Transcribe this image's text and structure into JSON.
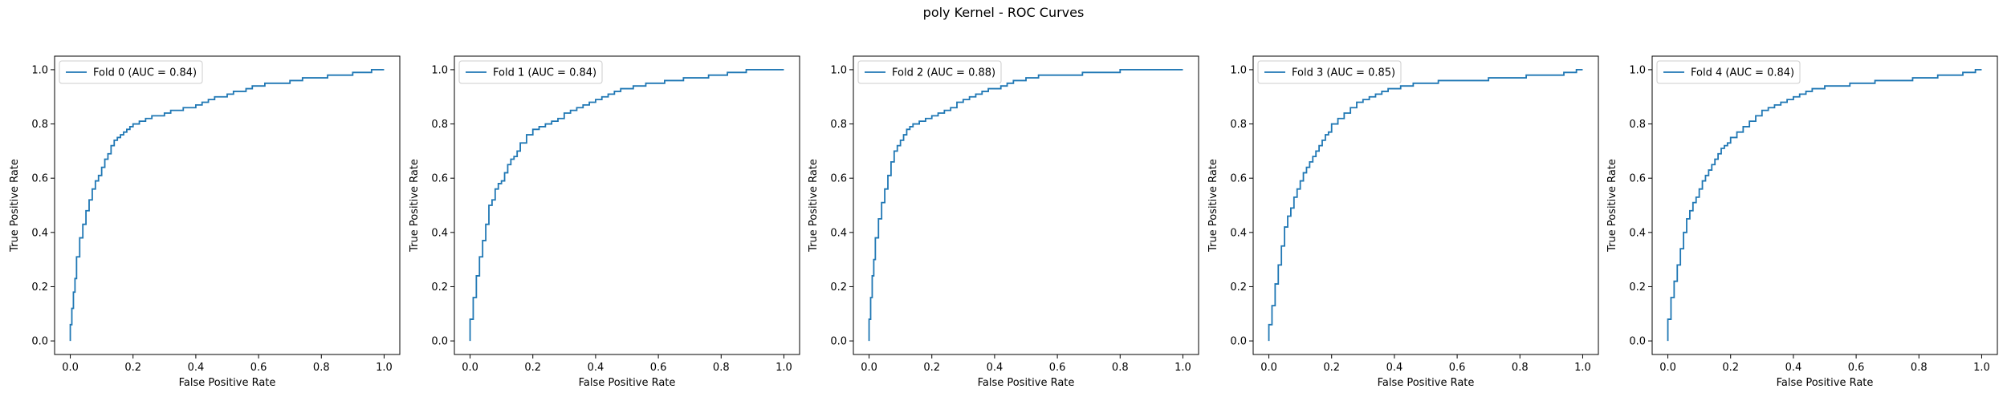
{
  "figure": {
    "suptitle": "poly Kernel - ROC Curves"
  },
  "chart_data": [
    {
      "type": "line",
      "xlabel": "False Positive Rate",
      "ylabel": "True Positive Rate",
      "xlim": [
        -0.05,
        1.05
      ],
      "ylim": [
        -0.05,
        1.05
      ],
      "xticks": [
        "0.0",
        "0.2",
        "0.4",
        "0.6",
        "0.8",
        "1.0"
      ],
      "yticks": [
        "0.0",
        "0.2",
        "0.4",
        "0.6",
        "0.8",
        "1.0"
      ],
      "grid": false,
      "legend": "upper-left",
      "series": [
        {
          "name": "Fold 0 (AUC = 0.84)",
          "color": "#1f77b4",
          "x": [
            0.0,
            0.005,
            0.01,
            0.015,
            0.02,
            0.03,
            0.04,
            0.05,
            0.06,
            0.07,
            0.08,
            0.09,
            0.1,
            0.11,
            0.12,
            0.13,
            0.14,
            0.15,
            0.16,
            0.17,
            0.18,
            0.19,
            0.2,
            0.22,
            0.24,
            0.26,
            0.28,
            0.3,
            0.32,
            0.34,
            0.36,
            0.38,
            0.4,
            0.42,
            0.44,
            0.46,
            0.48,
            0.5,
            0.52,
            0.54,
            0.56,
            0.58,
            0.6,
            0.62,
            0.64,
            0.66,
            0.68,
            0.7,
            0.72,
            0.74,
            0.76,
            0.78,
            0.8,
            0.82,
            0.84,
            0.86,
            0.88,
            0.9,
            0.92,
            0.94,
            0.96,
            0.98,
            1.0
          ],
          "y": [
            0.0,
            0.06,
            0.12,
            0.18,
            0.23,
            0.31,
            0.38,
            0.43,
            0.48,
            0.52,
            0.56,
            0.59,
            0.61,
            0.64,
            0.67,
            0.69,
            0.72,
            0.74,
            0.75,
            0.76,
            0.77,
            0.78,
            0.79,
            0.8,
            0.81,
            0.82,
            0.83,
            0.83,
            0.84,
            0.85,
            0.85,
            0.86,
            0.86,
            0.87,
            0.88,
            0.89,
            0.9,
            0.9,
            0.91,
            0.92,
            0.92,
            0.93,
            0.94,
            0.94,
            0.95,
            0.95,
            0.95,
            0.95,
            0.96,
            0.96,
            0.97,
            0.97,
            0.97,
            0.97,
            0.98,
            0.98,
            0.98,
            0.98,
            0.99,
            0.99,
            0.99,
            1.0,
            1.0
          ]
        }
      ]
    },
    {
      "type": "line",
      "xlabel": "False Positive Rate",
      "ylabel": "True Positive Rate",
      "xlim": [
        -0.05,
        1.05
      ],
      "ylim": [
        -0.05,
        1.05
      ],
      "xticks": [
        "0.0",
        "0.2",
        "0.4",
        "0.6",
        "0.8",
        "1.0"
      ],
      "yticks": [
        "0.0",
        "0.2",
        "0.4",
        "0.6",
        "0.8",
        "1.0"
      ],
      "grid": false,
      "legend": "upper-left",
      "series": [
        {
          "name": "Fold 1 (AUC = 0.84)",
          "color": "#1f77b4",
          "x": [
            0.0,
            0.01,
            0.02,
            0.03,
            0.04,
            0.05,
            0.06,
            0.07,
            0.08,
            0.09,
            0.1,
            0.11,
            0.12,
            0.13,
            0.14,
            0.15,
            0.16,
            0.18,
            0.2,
            0.22,
            0.24,
            0.26,
            0.28,
            0.3,
            0.32,
            0.34,
            0.36,
            0.38,
            0.4,
            0.42,
            0.44,
            0.46,
            0.48,
            0.5,
            0.52,
            0.54,
            0.56,
            0.58,
            0.6,
            0.62,
            0.64,
            0.66,
            0.68,
            0.7,
            0.72,
            0.74,
            0.76,
            0.78,
            0.8,
            0.82,
            0.84,
            0.86,
            0.88,
            0.9,
            0.92,
            0.94,
            0.96,
            0.98,
            1.0
          ],
          "y": [
            0.0,
            0.08,
            0.16,
            0.24,
            0.31,
            0.37,
            0.43,
            0.5,
            0.52,
            0.56,
            0.58,
            0.59,
            0.62,
            0.65,
            0.67,
            0.68,
            0.7,
            0.73,
            0.76,
            0.78,
            0.79,
            0.8,
            0.81,
            0.82,
            0.84,
            0.85,
            0.86,
            0.87,
            0.88,
            0.89,
            0.9,
            0.91,
            0.92,
            0.93,
            0.93,
            0.94,
            0.94,
            0.95,
            0.95,
            0.95,
            0.96,
            0.96,
            0.96,
            0.97,
            0.97,
            0.97,
            0.97,
            0.98,
            0.98,
            0.98,
            0.99,
            0.99,
            0.99,
            1.0,
            1.0,
            1.0,
            1.0,
            1.0,
            1.0
          ]
        }
      ]
    },
    {
      "type": "line",
      "xlabel": "False Positive Rate",
      "ylabel": "True Positive Rate",
      "xlim": [
        -0.05,
        1.05
      ],
      "ylim": [
        -0.05,
        1.05
      ],
      "xticks": [
        "0.0",
        "0.2",
        "0.4",
        "0.6",
        "0.8",
        "1.0"
      ],
      "yticks": [
        "0.0",
        "0.2",
        "0.4",
        "0.6",
        "0.8",
        "1.0"
      ],
      "grid": false,
      "legend": "upper-left",
      "series": [
        {
          "name": "Fold 2 (AUC = 0.88)",
          "color": "#1f77b4",
          "x": [
            0.0,
            0.005,
            0.01,
            0.015,
            0.02,
            0.03,
            0.04,
            0.05,
            0.06,
            0.07,
            0.08,
            0.09,
            0.1,
            0.11,
            0.12,
            0.13,
            0.14,
            0.16,
            0.18,
            0.2,
            0.22,
            0.24,
            0.26,
            0.28,
            0.3,
            0.32,
            0.34,
            0.36,
            0.38,
            0.4,
            0.42,
            0.44,
            0.46,
            0.48,
            0.5,
            0.52,
            0.54,
            0.56,
            0.58,
            0.6,
            0.64,
            0.68,
            0.72,
            0.76,
            0.8,
            0.84,
            0.88,
            0.92,
            0.96,
            1.0
          ],
          "y": [
            0.0,
            0.08,
            0.16,
            0.24,
            0.3,
            0.38,
            0.45,
            0.51,
            0.56,
            0.61,
            0.66,
            0.7,
            0.72,
            0.74,
            0.76,
            0.78,
            0.79,
            0.8,
            0.81,
            0.82,
            0.83,
            0.84,
            0.85,
            0.86,
            0.88,
            0.89,
            0.9,
            0.91,
            0.92,
            0.93,
            0.93,
            0.94,
            0.95,
            0.96,
            0.96,
            0.97,
            0.97,
            0.98,
            0.98,
            0.98,
            0.98,
            0.98,
            0.99,
            0.99,
            0.99,
            1.0,
            1.0,
            1.0,
            1.0,
            1.0
          ]
        }
      ]
    },
    {
      "type": "line",
      "xlabel": "False Positive Rate",
      "ylabel": "True Positive Rate",
      "xlim": [
        -0.05,
        1.05
      ],
      "ylim": [
        -0.05,
        1.05
      ],
      "xticks": [
        "0.0",
        "0.2",
        "0.4",
        "0.6",
        "0.8",
        "1.0"
      ],
      "yticks": [
        "0.0",
        "0.2",
        "0.4",
        "0.6",
        "0.8",
        "1.0"
      ],
      "grid": false,
      "legend": "upper-left",
      "series": [
        {
          "name": "Fold 3 (AUC = 0.85)",
          "color": "#1f77b4",
          "x": [
            0.0,
            0.01,
            0.02,
            0.03,
            0.04,
            0.05,
            0.06,
            0.07,
            0.08,
            0.09,
            0.1,
            0.11,
            0.12,
            0.13,
            0.14,
            0.15,
            0.16,
            0.17,
            0.18,
            0.19,
            0.2,
            0.22,
            0.24,
            0.26,
            0.28,
            0.3,
            0.32,
            0.34,
            0.36,
            0.38,
            0.4,
            0.42,
            0.44,
            0.46,
            0.48,
            0.5,
            0.54,
            0.58,
            0.62,
            0.66,
            0.7,
            0.74,
            0.78,
            0.82,
            0.86,
            0.9,
            0.94,
            0.98,
            1.0
          ],
          "y": [
            0.0,
            0.06,
            0.13,
            0.21,
            0.28,
            0.35,
            0.42,
            0.46,
            0.49,
            0.53,
            0.56,
            0.59,
            0.62,
            0.64,
            0.66,
            0.68,
            0.7,
            0.72,
            0.74,
            0.76,
            0.77,
            0.8,
            0.82,
            0.84,
            0.86,
            0.88,
            0.89,
            0.9,
            0.91,
            0.92,
            0.93,
            0.93,
            0.94,
            0.94,
            0.95,
            0.95,
            0.95,
            0.96,
            0.96,
            0.96,
            0.96,
            0.97,
            0.97,
            0.97,
            0.98,
            0.98,
            0.98,
            0.99,
            1.0
          ]
        }
      ]
    },
    {
      "type": "line",
      "xlabel": "False Positive Rate",
      "ylabel": "True Positive Rate",
      "xlim": [
        -0.05,
        1.05
      ],
      "ylim": [
        -0.05,
        1.05
      ],
      "xticks": [
        "0.0",
        "0.2",
        "0.4",
        "0.6",
        "0.8",
        "1.0"
      ],
      "yticks": [
        "0.0",
        "0.2",
        "0.4",
        "0.6",
        "0.8",
        "1.0"
      ],
      "grid": false,
      "legend": "upper-left",
      "series": [
        {
          "name": "Fold 4 (AUC = 0.84)",
          "color": "#1f77b4",
          "x": [
            0.0,
            0.01,
            0.02,
            0.03,
            0.04,
            0.05,
            0.06,
            0.07,
            0.08,
            0.09,
            0.1,
            0.11,
            0.12,
            0.13,
            0.14,
            0.15,
            0.16,
            0.17,
            0.18,
            0.19,
            0.2,
            0.22,
            0.24,
            0.26,
            0.28,
            0.3,
            0.32,
            0.34,
            0.36,
            0.38,
            0.4,
            0.42,
            0.44,
            0.46,
            0.48,
            0.5,
            0.54,
            0.58,
            0.62,
            0.66,
            0.7,
            0.74,
            0.78,
            0.82,
            0.86,
            0.9,
            0.94,
            0.98,
            1.0
          ],
          "y": [
            0.0,
            0.08,
            0.16,
            0.22,
            0.28,
            0.34,
            0.4,
            0.45,
            0.48,
            0.51,
            0.53,
            0.56,
            0.59,
            0.61,
            0.63,
            0.65,
            0.67,
            0.69,
            0.71,
            0.72,
            0.73,
            0.75,
            0.77,
            0.79,
            0.81,
            0.83,
            0.85,
            0.86,
            0.87,
            0.88,
            0.89,
            0.9,
            0.91,
            0.92,
            0.93,
            0.93,
            0.94,
            0.94,
            0.95,
            0.95,
            0.96,
            0.96,
            0.96,
            0.97,
            0.97,
            0.98,
            0.98,
            0.99,
            1.0
          ]
        }
      ]
    }
  ]
}
